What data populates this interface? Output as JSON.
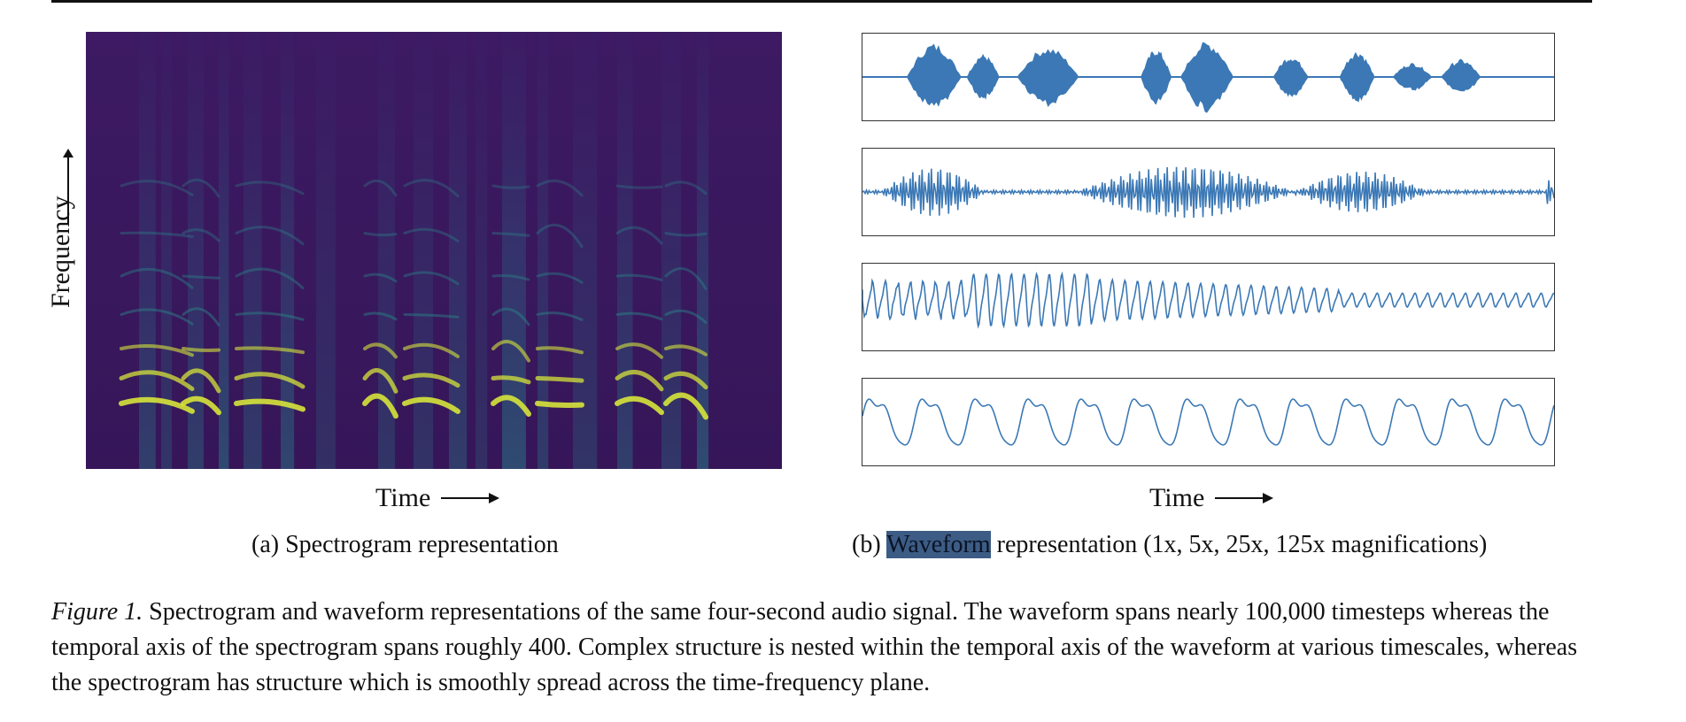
{
  "figure": {
    "panel_a": {
      "y_axis_label": "Frequency",
      "x_axis_label": "Time",
      "caption": "(a) Spectrogram representation"
    },
    "panel_b": {
      "x_axis_label": "Time",
      "caption_highlighted": "Waveform",
      "caption_rest": "representation (1x, 5x, 25x, 125x magnifications)",
      "caption_prefix": "(b)",
      "panels": [
        "1x",
        "5x",
        "25x",
        "125x"
      ]
    },
    "caption": {
      "label": "Figure 1.",
      "text": "Spectrogram and waveform representations of the same four-second audio signal. The waveform spans nearly 100,000 timesteps whereas the temporal axis of the spectrogram spans roughly 400. Complex structure is nested within the temporal axis of the waveform at various timescales, whereas the spectrogram has structure which is smoothly spread across the time-frequency plane."
    }
  },
  "colors": {
    "spectrogram_background": "#3b1460",
    "spectrogram_mid": "#2a8d8c",
    "spectrogram_high": "#d6e43a",
    "waveform": "#3b78b5",
    "highlight": "#3d5c85"
  }
}
